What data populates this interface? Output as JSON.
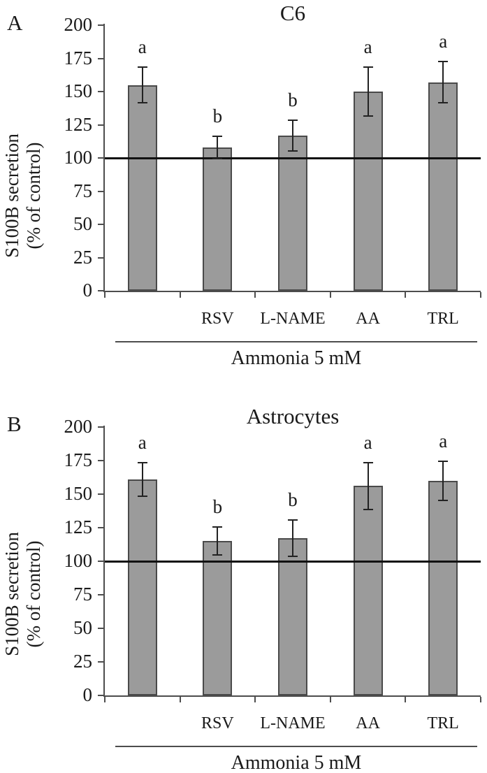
{
  "colors": {
    "bar_fill": "#9b9b9b",
    "bar_border": "#4a4a4a",
    "axis": "#4d4d4d",
    "error_bar": "#222222",
    "ref_line": "#111111",
    "text": "#1a1a1a"
  },
  "chart_data": [
    {
      "type": "bar",
      "panel_label": "A",
      "title": "C6",
      "ylabel_line1": "S100B secretion",
      "ylabel_line2": "(% of control)",
      "xlabel": "Ammonia 5 mM",
      "categories": [
        "",
        "RSV",
        "L-NAME",
        "AA",
        "TRL"
      ],
      "values": [
        155,
        108,
        117,
        150,
        157
      ],
      "errors": [
        14,
        9,
        12,
        19,
        16
      ],
      "sig_letters": [
        "a",
        "b",
        "b",
        "a",
        "a"
      ],
      "ylim": [
        0,
        200
      ],
      "yticks": [
        0,
        25,
        50,
        75,
        100,
        125,
        150,
        175,
        200
      ],
      "ref_line": 100,
      "grid": "off",
      "legend": "none"
    },
    {
      "type": "bar",
      "panel_label": "B",
      "title": "Astrocytes",
      "ylabel_line1": "S100B secretion",
      "ylabel_line2": "(% of control)",
      "xlabel": "Ammonia 5 mM",
      "categories": [
        "",
        "RSV",
        "L-NAME",
        "AA",
        "TRL"
      ],
      "values": [
        161,
        115,
        117,
        156,
        160
      ],
      "errors": [
        13,
        11,
        14,
        18,
        15
      ],
      "sig_letters": [
        "a",
        "b",
        "b",
        "a",
        "a"
      ],
      "ylim": [
        0,
        200
      ],
      "yticks": [
        0,
        25,
        50,
        75,
        100,
        125,
        150,
        175,
        200
      ],
      "ref_line": 100,
      "grid": "off",
      "legend": "none"
    }
  ]
}
